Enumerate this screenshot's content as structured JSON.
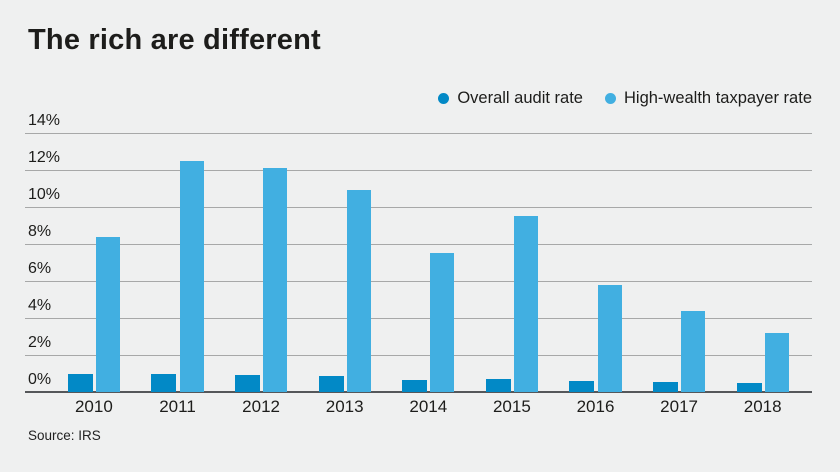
{
  "title": "The rich are different",
  "source_note": "Source: IRS",
  "legend": {
    "items": [
      {
        "label": "Overall audit rate",
        "color": "#0289c6"
      },
      {
        "label": "High-wealth taxpayer rate",
        "color": "#41afe1"
      }
    ]
  },
  "colors": {
    "background": "#eff0f0",
    "overall_bar": "#0289c6",
    "high_wealth_bar": "#41afe1",
    "gridline": "#a7a8a8",
    "axis_line": "#55575a",
    "text": "#1d1d1b"
  },
  "chart_data": {
    "type": "bar",
    "title": "The rich are different",
    "categories": [
      "2010",
      "2011",
      "2012",
      "2013",
      "2014",
      "2015",
      "2016",
      "2017",
      "2018"
    ],
    "series": [
      {
        "name": "Overall audit rate",
        "color": "#0289c6",
        "values": [
          0.95,
          0.95,
          0.9,
          0.85,
          0.65,
          0.7,
          0.6,
          0.55,
          0.5
        ]
      },
      {
        "name": "High-wealth taxpayer rate",
        "color": "#41afe1",
        "values": [
          8.4,
          12.5,
          12.1,
          10.9,
          7.5,
          9.5,
          5.8,
          4.4,
          3.2
        ]
      }
    ],
    "xlabel": "",
    "ylabel": "",
    "ylim": [
      0,
      14
    ],
    "ytick_step": 2,
    "ytick_labels": [
      "0%",
      "2%",
      "4%",
      "6%",
      "8%",
      "10%",
      "12%",
      "14%"
    ],
    "grid": true,
    "legend_position": "top-right",
    "source": "Source: IRS"
  }
}
